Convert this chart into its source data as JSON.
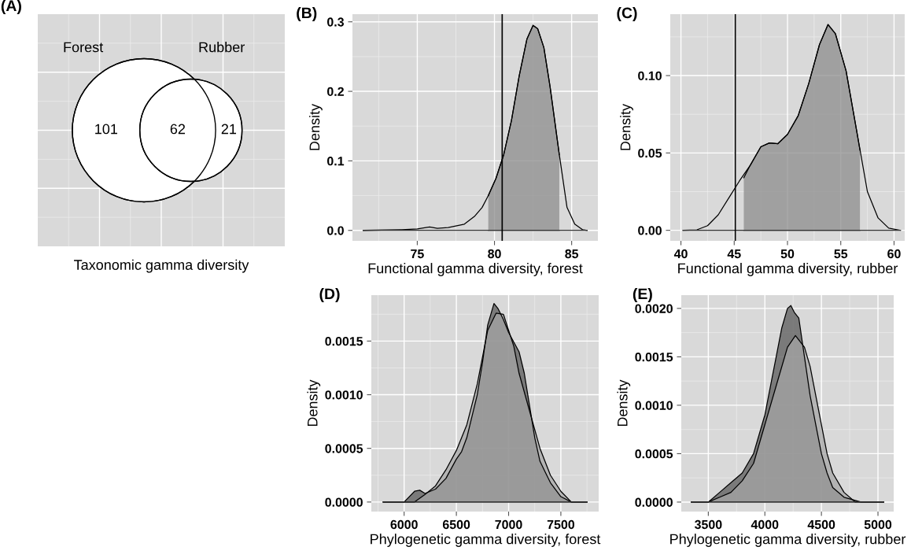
{
  "chart_data": [
    {
      "type": "other",
      "title": "(A)",
      "xlabel": "Taxonomic gamma diversity",
      "annotations": [
        "Forest",
        "Rubber"
      ],
      "values": [
        101,
        62,
        21
      ],
      "value_labels": [
        "101",
        "62",
        "21"
      ]
    },
    {
      "type": "area",
      "title": "(B)",
      "xlabel": "Functional gamma diversity, forest",
      "ylabel": "Density",
      "grid": true,
      "xlim": [
        70.8,
        86.7
      ],
      "xticks": [
        75,
        80,
        85
      ],
      "ylim": [
        -0.015,
        0.311
      ],
      "yticks": [
        {
          "value": 0,
          "label": "0.0"
        },
        {
          "value": 0.1,
          "label": "0.1"
        },
        {
          "value": 0.2,
          "label": "0.2"
        },
        {
          "value": 0.3,
          "label": "0.3"
        }
      ],
      "ref_lines": [
        {
          "axis": "x",
          "value": 80.5,
          "color": "#000000"
        }
      ],
      "series": [
        {
          "type": "area",
          "color": "#8c8c8c",
          "x": [
            79.6,
            80.1,
            80.6,
            81.1,
            81.6,
            82.1,
            82.5,
            82.8,
            83.2,
            83.6,
            84.2
          ],
          "values": [
            0.05,
            0.075,
            0.109,
            0.158,
            0.222,
            0.275,
            0.295,
            0.29,
            0.263,
            0.207,
            0.109
          ]
        },
        {
          "type": "line",
          "color": "#000000",
          "x": [
            71.5,
            74,
            75,
            75.8,
            76.3,
            77,
            78.05,
            78.7,
            79.2,
            79.6,
            80.1,
            80.6,
            81.1,
            81.6,
            82.1,
            82.5,
            82.8,
            83.2,
            83.6,
            84.2,
            84.7,
            85.2,
            85.7,
            86.0
          ],
          "values": [
            0,
            0.001,
            0.002,
            0.005,
            0.003,
            0.004,
            0.009,
            0.02,
            0.033,
            0.05,
            0.075,
            0.109,
            0.158,
            0.222,
            0.275,
            0.295,
            0.29,
            0.263,
            0.207,
            0.109,
            0.033,
            0.009,
            0.001,
            0
          ]
        }
      ]
    },
    {
      "type": "area",
      "title": "(C)",
      "xlabel": "Functional gamma diversity, rubber",
      "ylabel": "Density",
      "grid": true,
      "xlim": [
        39.0,
        61.0
      ],
      "xticks": [
        40,
        45,
        50,
        55,
        60
      ],
      "ylim": [
        -0.0068,
        0.1397
      ],
      "yticks": [
        {
          "value": 0,
          "label": "0.00"
        },
        {
          "value": 0.05,
          "label": "0.05"
        },
        {
          "value": 0.1,
          "label": "0.10"
        }
      ],
      "ref_lines": [
        {
          "axis": "x",
          "value": 45.1,
          "color": "#000000"
        }
      ],
      "series": [
        {
          "type": "area",
          "color": "#8c8c8c",
          "x": [
            45.9,
            46.5,
            47.5,
            48.3,
            49.1,
            50,
            51,
            52,
            53,
            53.8,
            54.5,
            55.5,
            56.5,
            56.8
          ],
          "values": [
            0.034,
            0.042,
            0.054,
            0.0565,
            0.056,
            0.062,
            0.074,
            0.095,
            0.12,
            0.133,
            0.127,
            0.103,
            0.064,
            0.052
          ]
        },
        {
          "type": "line",
          "color": "#000000",
          "x": [
            40.2,
            41.5,
            42.5,
            43.5,
            44.5,
            45.5,
            46.5,
            47.5,
            48.3,
            49.1,
            50,
            51,
            52,
            53,
            53.8,
            54.5,
            55.5,
            56.5,
            57.5,
            58.5,
            59.5,
            60.6
          ],
          "values": [
            0,
            0.0003,
            0.003,
            0.01,
            0.021,
            0.032,
            0.042,
            0.054,
            0.0565,
            0.056,
            0.062,
            0.074,
            0.095,
            0.12,
            0.133,
            0.127,
            0.103,
            0.064,
            0.025,
            0.008,
            0.0014,
            0
          ]
        }
      ]
    },
    {
      "type": "area",
      "title": "(D)",
      "xlabel": "Phylogenetic gamma diversity, forest",
      "ylabel": "Density",
      "grid": true,
      "xlim": [
        5686,
        7862
      ],
      "xticks": [
        6000,
        6500,
        7000,
        7500
      ],
      "ylim": [
        -8.9e-05,
        0.001928
      ],
      "yticks": [
        {
          "value": 0,
          "label": "0.0000"
        },
        {
          "value": 0.0005,
          "label": "0.0005"
        },
        {
          "value": 0.001,
          "label": "0.0010"
        },
        {
          "value": 0.0015,
          "label": "0.0015"
        }
      ],
      "series": [
        {
          "type": "area",
          "color": "#5a5a5a",
          "x": [
            5800,
            6000,
            6100,
            6150,
            6200,
            6300,
            6400,
            6500,
            6550,
            6600,
            6700,
            6750,
            6800,
            6860,
            6900,
            6950,
            7000,
            7100,
            7150,
            7200,
            7250,
            7300,
            7350,
            7400,
            7500,
            7600,
            7750
          ],
          "values": [
            0,
            0,
            0.0001,
            0.00011,
            8e-05,
            0.00012,
            0.00022,
            0.0004,
            0.00047,
            0.0006,
            0.001,
            0.0013,
            0.00165,
            0.00185,
            0.0018,
            0.0017,
            0.00158,
            0.0014,
            0.0012,
            0.0009,
            0.0006,
            0.00038,
            0.00028,
            0.00018,
            5e-05,
            0,
            0
          ]
        },
        {
          "type": "area",
          "color": "#a6a6a6",
          "x": [
            5800,
            6100,
            6200,
            6300,
            6400,
            6500,
            6600,
            6700,
            6800,
            6880,
            6950,
            7000,
            7050,
            7100,
            7200,
            7300,
            7400,
            7500,
            7600,
            7750
          ],
          "values": [
            0,
            0,
            7e-05,
            0.00015,
            0.0003,
            0.00048,
            0.00072,
            0.0011,
            0.0016,
            0.00176,
            0.00175,
            0.0016,
            0.00145,
            0.0012,
            0.00085,
            0.0005,
            0.00025,
            0.0001,
            0,
            0
          ]
        }
      ]
    },
    {
      "type": "area",
      "title": "(E)",
      "xlabel": "Phylogenetic gamma diversity, rubber",
      "ylabel": "Density",
      "grid": true,
      "xlim": [
        3261,
        5139
      ],
      "xticks": [
        3500,
        4000,
        4500,
        5000
      ],
      "ylim": [
        -9.8e-05,
        0.002137
      ],
      "yticks": [
        {
          "value": 0,
          "label": "0.0000"
        },
        {
          "value": 0.0005,
          "label": "0.0005"
        },
        {
          "value": 0.001,
          "label": "0.0010"
        },
        {
          "value": 0.0015,
          "label": "0.0015"
        },
        {
          "value": 0.002,
          "label": "0.0020"
        }
      ],
      "series": [
        {
          "type": "area",
          "color": "#5a5a5a",
          "x": [
            3350,
            3500,
            3600,
            3700,
            3800,
            3900,
            4000,
            4100,
            4150,
            4200,
            4230,
            4260,
            4300,
            4350,
            4400,
            4450,
            4500,
            4550,
            4600,
            4700,
            4850,
            5050
          ],
          "values": [
            0,
            0,
            0.0001,
            0.0002,
            0.0003,
            0.0005,
            0.0009,
            0.0015,
            0.0018,
            0.002,
            0.00203,
            0.00196,
            0.0019,
            0.0015,
            0.0011,
            0.0008,
            0.0005,
            0.0003,
            0.00015,
            5e-05,
            0,
            0
          ]
        },
        {
          "type": "area",
          "color": "#a6a6a6",
          "x": [
            3350,
            3500,
            3600,
            3700,
            3800,
            3900,
            4000,
            4100,
            4200,
            4270,
            4350,
            4400,
            4450,
            4500,
            4550,
            4600,
            4700,
            4800,
            4900,
            5050
          ],
          "values": [
            0,
            0,
            5e-05,
            0.0001,
            0.00022,
            0.0004,
            0.0008,
            0.0012,
            0.0016,
            0.00172,
            0.0016,
            0.0014,
            0.0011,
            0.0008,
            0.0005,
            0.0003,
            0.0001,
            0,
            0,
            0
          ]
        }
      ]
    }
  ]
}
